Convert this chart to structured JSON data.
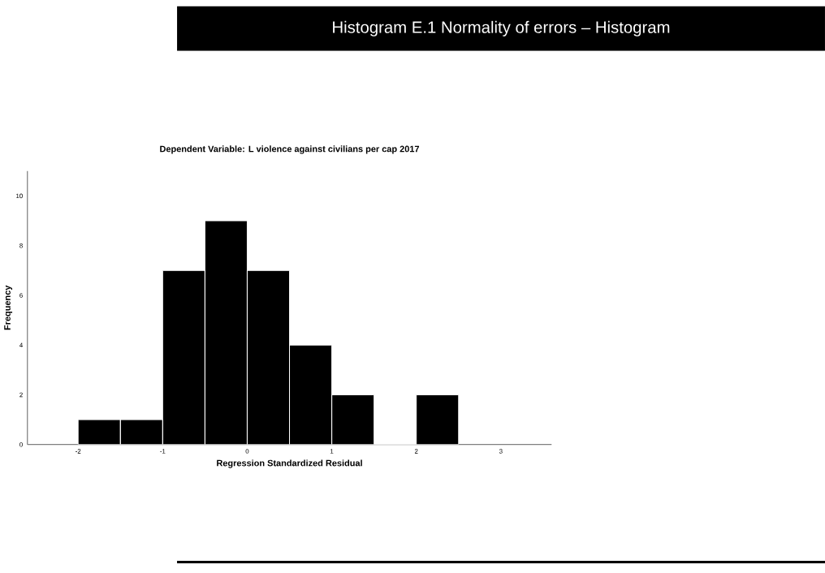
{
  "chart_data": {
    "type": "histogram",
    "title": "Histogram E.1 Normality of errors – Histogram",
    "subtitle": "Dependent Variable: L violence against civilians per cap 2017",
    "xlabel": "Regression Standardized Residual",
    "ylabel": "Frequency",
    "bins": [
      -2,
      -1.5,
      -1,
      -0.5,
      0,
      0.5,
      1,
      1.5,
      2,
      2.5
    ],
    "values": [
      1,
      1,
      7,
      9,
      7,
      4,
      2,
      0,
      2
    ],
    "color": "#000000",
    "xlim": [
      -2.6,
      3.6
    ],
    "ylim": [
      0,
      11
    ],
    "xticks": [
      -2,
      -1,
      0,
      1,
      2,
      3
    ],
    "yticks": [
      0,
      2,
      4,
      6,
      8,
      10
    ],
    "grid": false
  }
}
